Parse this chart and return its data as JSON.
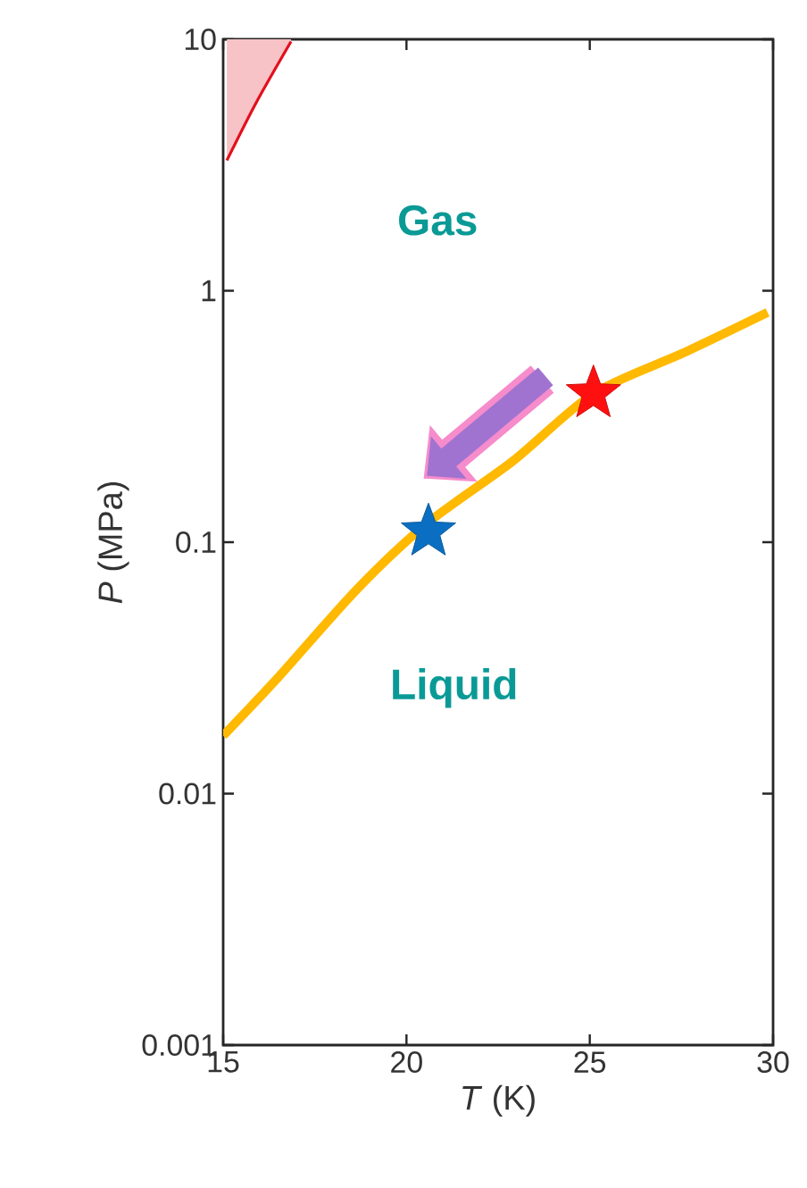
{
  "chart_data": {
    "type": "line",
    "xlabel": "*T* (K)",
    "ylabel": "*P* (MPa)",
    "log": "y",
    "xlim": [
      15,
      30
    ],
    "ylim": [
      0.001,
      10
    ],
    "xticks": [
      15,
      20,
      25,
      30
    ],
    "yticks": [
      0.001,
      0.01,
      0.1,
      1,
      10
    ],
    "series": [
      {
        "color": "#e3101c",
        "x": [
          15.1,
          15.9,
          16.85
        ],
        "values": [
          3.3,
          5.6,
          9.8
        ],
        "lower": [
          3.3,
          5.6,
          9.8
        ],
        "upper": [
          10,
          10,
          10
        ]
      },
      {
        "color": "#ffb900",
        "x": [
          15,
          16.5,
          18.65,
          20.6,
          22.9,
          25.1,
          27.6,
          29.85
        ],
        "values": [
          0.017,
          0.029,
          0.065,
          0.12,
          0.21,
          0.39,
          0.57,
          0.82
        ]
      },
      {
        "type": "scatter",
        "color": "#ff1010",
        "marker": "star",
        "x": [
          25.1
        ],
        "values": [
          0.39
        ]
      },
      {
        "type": "scatter",
        "color": "#0a6fc2",
        "marker": "star",
        "x": [
          20.6
        ],
        "values": [
          0.11
        ]
      }
    ],
    "annotations": [
      "Gas",
      "Liquid"
    ]
  }
}
